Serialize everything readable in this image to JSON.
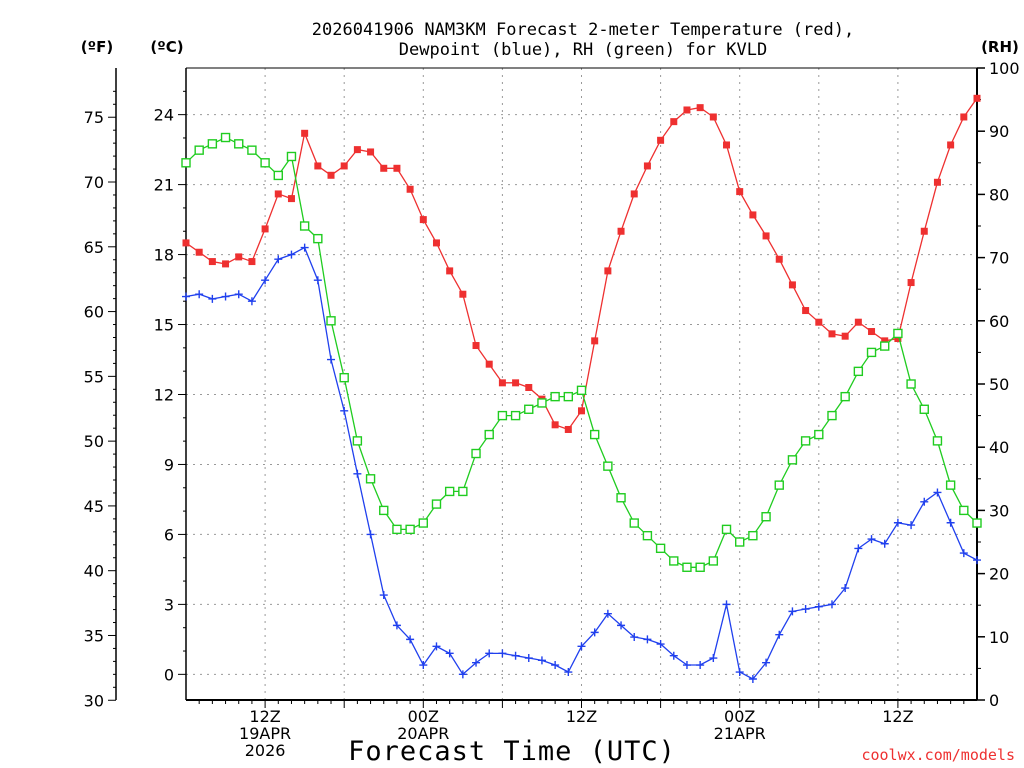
{
  "chart_data": {
    "type": "line",
    "title_line1": "2026041906 NAM3KM Forecast 2-meter Temperature (red),",
    "title_line2": "Dewpoint (blue), RH (green) for KVLD",
    "xlabel": "Forecast Time (UTC)",
    "watermark": "coolwx.com/models",
    "unit_f": "(ºF)",
    "unit_c": "(ºC)",
    "unit_rh": "(RH)",
    "x_range_hours": [
      0,
      60
    ],
    "y_celsius_range": [
      -1.1,
      26.0
    ],
    "y_rh_range": [
      0,
      100
    ],
    "f_ticks": [
      "30",
      "35",
      "40",
      "45",
      "50",
      "55",
      "60",
      "65",
      "70",
      "75"
    ],
    "c_ticks": [
      "0",
      "3",
      "6",
      "9",
      "12",
      "15",
      "18",
      "21",
      "24"
    ],
    "rh_ticks": [
      "0",
      "10",
      "20",
      "30",
      "40",
      "50",
      "60",
      "70",
      "80",
      "90",
      "100"
    ],
    "x_tick_labels": [
      {
        "hour": 6,
        "lines": [
          "12Z",
          "19APR",
          "2026"
        ]
      },
      {
        "hour": 18,
        "lines": [
          "00Z",
          "20APR"
        ]
      },
      {
        "hour": 30,
        "lines": [
          "12Z"
        ]
      },
      {
        "hour": 42,
        "lines": [
          "00Z",
          "21APR"
        ]
      },
      {
        "hour": 54,
        "lines": [
          "12Z"
        ]
      }
    ],
    "colors": {
      "temp": "#ee3030",
      "dewpoint": "#2040ee",
      "rh": "#20cc20",
      "grid": "#999999"
    },
    "series": [
      {
        "name": "2-meter Temperature (°C)",
        "key": "temp",
        "marker": "filled-square",
        "values": [
          18.5,
          18.1,
          17.7,
          17.6,
          17.9,
          17.7,
          19.1,
          20.6,
          20.4,
          23.2,
          21.8,
          21.4,
          21.8,
          22.5,
          22.4,
          21.7,
          21.7,
          20.8,
          19.5,
          18.5,
          17.3,
          16.3,
          14.1,
          13.3,
          12.5,
          12.5,
          12.3,
          11.8,
          10.7,
          10.5,
          11.3,
          14.3,
          17.3,
          19.0,
          20.6,
          21.8,
          22.9,
          23.7,
          24.2,
          24.3,
          23.9,
          22.7,
          20.7,
          19.7,
          18.8,
          17.8,
          16.7,
          15.6,
          15.1,
          14.6,
          14.5,
          15.1,
          14.7,
          14.3,
          14.4,
          16.8,
          19.0,
          21.1,
          22.7,
          23.9,
          24.7
        ]
      },
      {
        "name": "Dewpoint (°C)",
        "key": "dewpoint",
        "marker": "plus",
        "values": [
          16.2,
          16.3,
          16.1,
          16.2,
          16.3,
          16.0,
          16.9,
          17.8,
          18.0,
          18.3,
          16.9,
          13.5,
          11.3,
          8.6,
          6.0,
          3.4,
          2.1,
          1.5,
          0.4,
          1.2,
          0.9,
          0.0,
          0.5,
          0.9,
          0.9,
          0.8,
          0.7,
          0.6,
          0.4,
          0.1,
          1.2,
          1.8,
          2.6,
          2.1,
          1.6,
          1.5,
          1.3,
          0.8,
          0.4,
          0.4,
          0.7,
          3.0,
          0.1,
          -0.2,
          0.5,
          1.7,
          2.7,
          2.8,
          2.9,
          3.0,
          3.7,
          5.4,
          5.8,
          5.6,
          6.5,
          6.4,
          7.4,
          7.8,
          6.5,
          5.2,
          4.9
        ]
      },
      {
        "name": "RH (%)",
        "key": "rh",
        "marker": "open-square",
        "values": [
          85,
          87,
          88,
          89,
          88,
          87,
          85,
          83,
          86,
          75,
          73,
          60,
          51,
          41,
          35,
          30,
          27,
          27,
          28,
          31,
          33,
          33,
          39,
          42,
          45,
          45,
          46,
          47,
          48,
          48,
          49,
          42,
          37,
          32,
          28,
          26,
          24,
          22,
          21,
          21,
          22,
          27,
          25,
          26,
          29,
          34,
          38,
          41,
          42,
          45,
          48,
          52,
          55,
          56,
          58,
          50,
          46,
          41,
          34,
          30,
          28
        ]
      }
    ]
  }
}
